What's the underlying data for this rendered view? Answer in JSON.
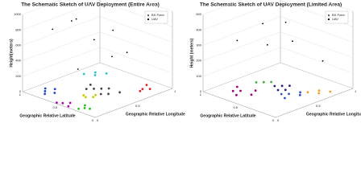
{
  "chart_data": [
    {
      "type": "scatter3d",
      "title": "The Schematic Sketch of UAV Deployment (Entire Area)",
      "xlabel": "Geographic Relative Latitude",
      "ylabel": "Geographic Relative Longitude",
      "zlabel": "Height(meters)",
      "xlim": [
        0,
        1
      ],
      "ylim": [
        0,
        1
      ],
      "zlim": [
        0,
        1000
      ],
      "xticks": [
        0,
        0.5,
        1
      ],
      "yticks": [
        0,
        0.5,
        1
      ],
      "zticks": [
        0,
        200,
        400,
        600,
        800,
        1000
      ],
      "grid": true,
      "legend": "upper right",
      "series": [
        {
          "name": "BS Point",
          "color": "#555555",
          "x": [
            0.85,
            0.8,
            0.9,
            0.75,
            0.82,
            0.5,
            0.45,
            0.55,
            0.4,
            0.25,
            0.3,
            0.2,
            0.28,
            0.45,
            0.4,
            0.5,
            0.42,
            0.55,
            0.5,
            0.6,
            0.45,
            0.65,
            0.35,
            0.4,
            0.3,
            0.2,
            0.15,
            0.25,
            0.18,
            0.8,
            0.85,
            0.75,
            0.9
          ],
          "y": [
            0.15,
            0.1,
            0.2,
            0.18,
            0.25,
            0.05,
            0.1,
            0.02,
            0.03,
            0.1,
            0.15,
            0.12,
            0.05,
            0.3,
            0.35,
            0.32,
            0.4,
            0.5,
            0.55,
            0.45,
            0.6,
            0.55,
            0.5,
            0.45,
            0.6,
            0.8,
            0.85,
            0.9,
            0.75,
            0.75,
            0.8,
            0.85,
            0.7
          ],
          "z": [
            0,
            0,
            0,
            0,
            0,
            0,
            0,
            0,
            0,
            0,
            0,
            0,
            0,
            0,
            0,
            0,
            0,
            0,
            0,
            0,
            0,
            0,
            0,
            0,
            0,
            0,
            0,
            0,
            0,
            0,
            0,
            0,
            0
          ],
          "colors": [
            "#1f3fd0",
            "#1f3fd0",
            "#1f3fd0",
            "#1f3fd0",
            "#1f3fd0",
            "#b000b0",
            "#b000b0",
            "#b000b0",
            "#b000b0",
            "#20c020",
            "#20c020",
            "#20c020",
            "#20c020",
            "#c8c800",
            "#c8c800",
            "#c8c800",
            "#c8c800",
            "#444444",
            "#444444",
            "#444444",
            "#444444",
            "#444444",
            "#444444",
            "#444444",
            "#444444",
            "#e02020",
            "#e02020",
            "#e02020",
            "#e02020",
            "#20c8c8",
            "#20c8c8",
            "#20c8c8",
            "#20c8c8"
          ]
        },
        {
          "name": "UAV",
          "color": "#000000",
          "x": [
            0.8,
            0.75,
            0.6,
            0.5,
            0.3,
            0.9,
            0.45,
            0.2
          ],
          "y": [
            0.2,
            0.4,
            0.55,
            0.7,
            0.5,
            0.6,
            0.2,
            0.6
          ],
          "z": [
            800,
            850,
            600,
            700,
            500,
            750,
            400,
            550
          ]
        }
      ]
    },
    {
      "type": "scatter3d",
      "title": "The Schematic Sketch of UAV Deployment (Limited Area)",
      "xlabel": "Geographic Relative Latitude",
      "ylabel": "Geographic Relative Longitude",
      "zlabel": "Height (meters)",
      "xlim": [
        0,
        1
      ],
      "ylim": [
        0,
        1
      ],
      "zlim": [
        0,
        500
      ],
      "xticks": [
        0,
        0.5,
        1
      ],
      "yticks": [
        0,
        0.5,
        1
      ],
      "zticks": [
        0,
        100,
        200,
        300,
        400,
        500
      ],
      "grid": true,
      "legend": "upper right",
      "series": [
        {
          "name": "BS Point",
          "color": "#555555",
          "x": [
            0.8,
            0.75,
            0.7,
            0.85,
            0.6,
            0.65,
            0.8,
            0.75,
            0.7,
            0.3,
            0.35,
            0.25,
            0.4,
            0.3,
            0.15,
            0.2,
            0.1,
            0.25,
            0.5,
            0.55,
            0.45,
            0.5,
            0.6
          ],
          "y": [
            0.2,
            0.25,
            0.15,
            0.3,
            0.25,
            0.35,
            0.5,
            0.55,
            0.6,
            0.4,
            0.5,
            0.55,
            0.45,
            0.6,
            0.7,
            0.75,
            0.8,
            0.65,
            0.5,
            0.6,
            0.55,
            0.65,
            0.55
          ],
          "z": [
            0,
            0,
            0,
            0,
            0,
            0,
            0,
            0,
            0,
            0,
            0,
            0,
            0,
            0,
            0,
            0,
            0,
            0,
            0,
            0,
            0,
            0,
            0
          ],
          "colors": [
            "#a0007a",
            "#a0007a",
            "#a0007a",
            "#a0007a",
            "#a0007a",
            "#a0007a",
            "#40b040",
            "#40b040",
            "#40b040",
            "#3050d0",
            "#3050d0",
            "#3050d0",
            "#3050d0",
            "#3050d0",
            "#f0a020",
            "#f0a020",
            "#f0a020",
            "#f0a020",
            "#202080",
            "#202080",
            "#202080",
            "#202080",
            "#202080"
          ]
        },
        {
          "name": "UAV",
          "color": "#000000",
          "x": [
            0.85,
            0.7,
            0.3,
            0.5,
            0.15,
            0.55
          ],
          "y": [
            0.3,
            0.55,
            0.5,
            0.6,
            0.75,
            0.35
          ],
          "z": [
            300,
            250,
            350,
            420,
            200,
            450
          ]
        }
      ]
    }
  ]
}
